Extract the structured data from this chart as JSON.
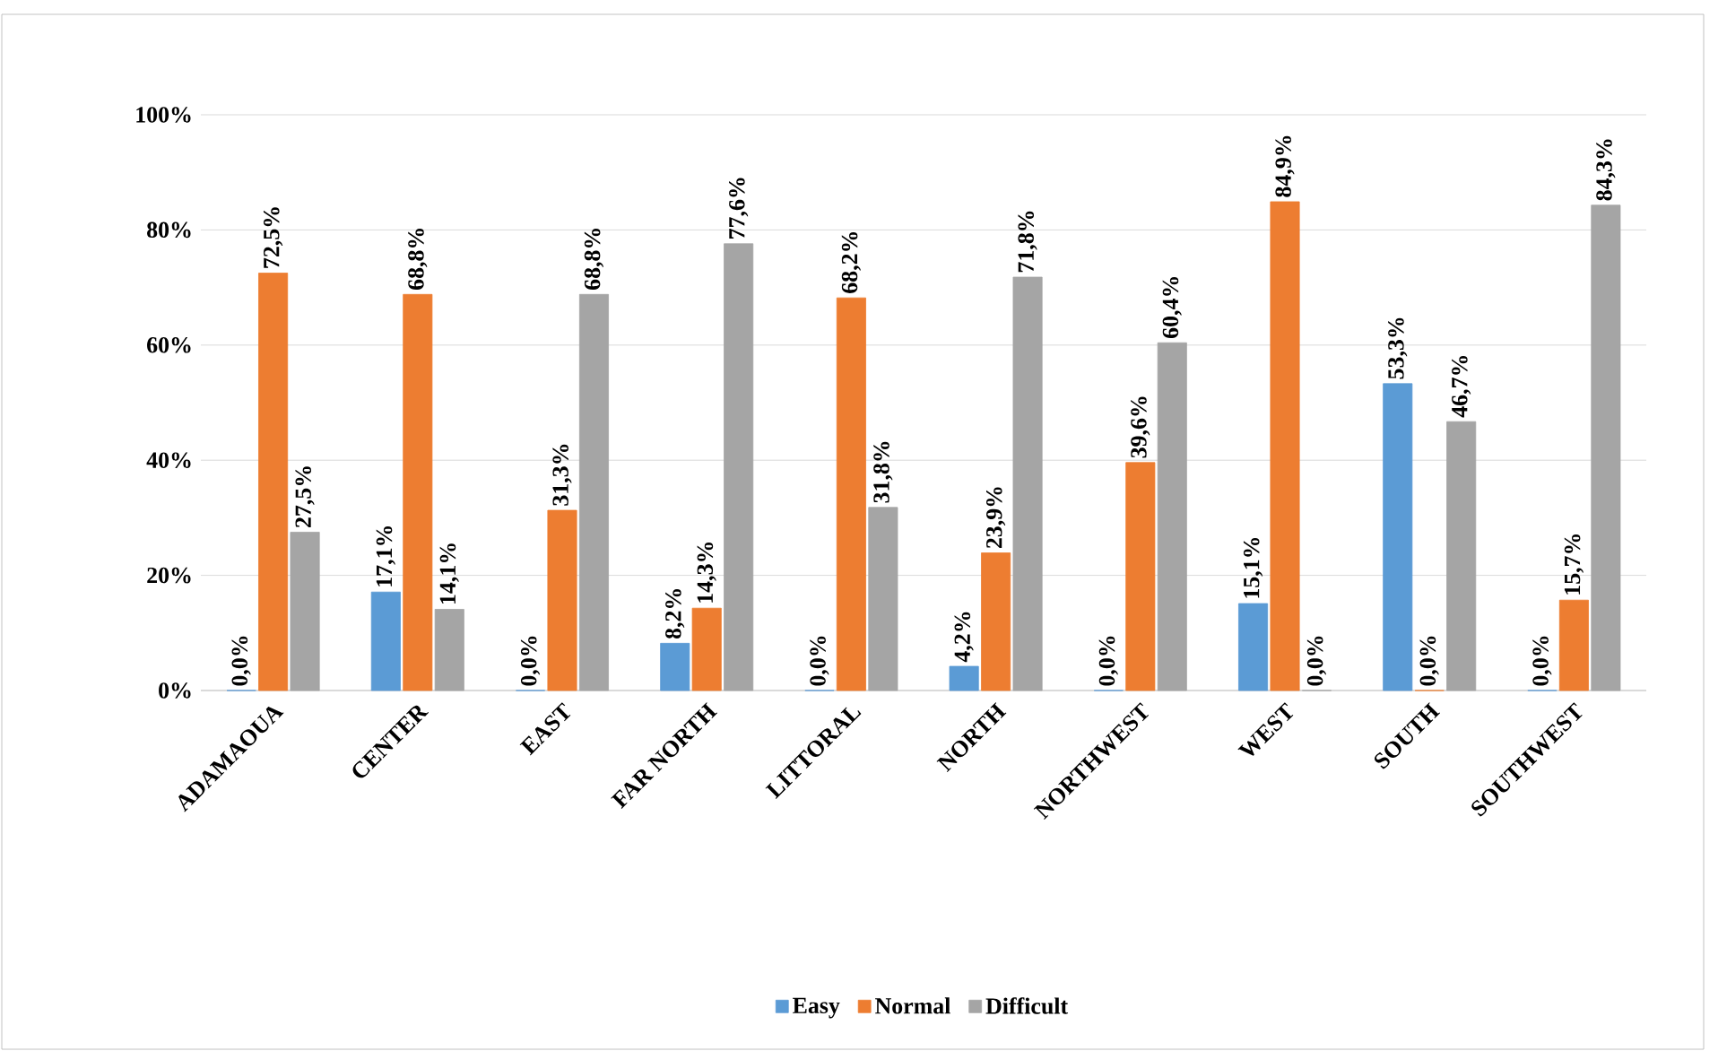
{
  "chart_data": {
    "type": "bar",
    "categories": [
      "ADAMAOUA",
      "CENTER",
      "EAST",
      "FAR NORTH",
      "LITTORAL",
      "NORTH",
      "NORTHWEST",
      "WEST",
      "SOUTH",
      "SOUTHWEST"
    ],
    "series": [
      {
        "name": "Easy",
        "color": "#5b9bd5",
        "values": [
          0.0,
          17.1,
          0.0,
          8.2,
          0.0,
          4.2,
          0.0,
          15.1,
          53.3,
          0.0
        ],
        "value_labels": [
          "0,0%",
          "17,1%",
          "0,0%",
          "8,2%",
          "0,0%",
          "4,2%",
          "0,0%",
          "15,1%",
          "53,3%",
          "0,0%"
        ]
      },
      {
        "name": "Normal",
        "color": "#ed7d31",
        "values": [
          72.5,
          68.8,
          31.3,
          14.3,
          68.2,
          23.9,
          39.6,
          84.9,
          0.0,
          15.7
        ],
        "value_labels": [
          "72,5%",
          "68,8%",
          "31,3%",
          "14,3%",
          "68,2%",
          "23,9%",
          "39,6%",
          "84,9%",
          "0,0%",
          "15,7%"
        ]
      },
      {
        "name": "Difficult",
        "color": "#a5a5a5",
        "values": [
          27.5,
          14.1,
          68.8,
          77.6,
          31.8,
          71.8,
          60.4,
          0.0,
          46.7,
          84.3
        ],
        "value_labels": [
          "27,5%",
          "14,1%",
          "68,8%",
          "77,6%",
          "31,8%",
          "71,8%",
          "60,4%",
          "0,0%",
          "46,7%",
          "84,3%"
        ]
      }
    ],
    "ylim": [
      0,
      100
    ],
    "yticks": [
      {
        "value": 0,
        "label": "0%"
      },
      {
        "value": 20,
        "label": "20%"
      },
      {
        "value": 40,
        "label": "40%"
      },
      {
        "value": 60,
        "label": "60%"
      },
      {
        "value": 80,
        "label": "80%"
      },
      {
        "value": 100,
        "label": "100%"
      }
    ],
    "grid": "y",
    "legend": "bottom"
  }
}
